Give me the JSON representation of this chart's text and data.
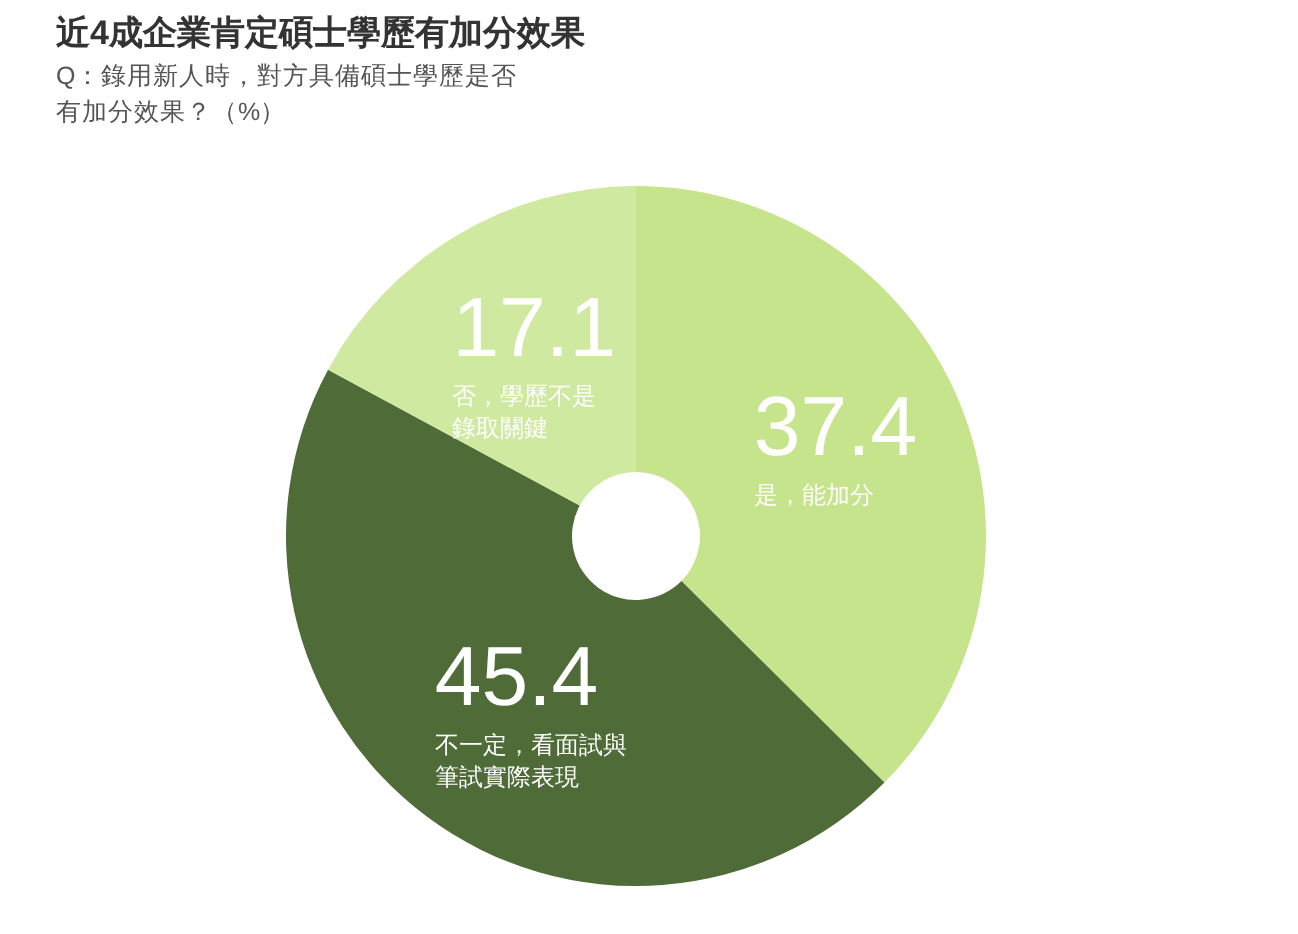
{
  "chart_data": {
    "type": "donut",
    "title": "近4成企業肯定碩士學歷有加分效果",
    "subtitle": "Q：錄用新人時，對方具備碩士學歷是否有加分效果？（%）",
    "categories": [
      "是，能加分",
      "不一定，看面試與筆試實際表現",
      "否，學歷不是錄取關鍵"
    ],
    "values": [
      37.4,
      45.4,
      17.1
    ],
    "colors": [
      "#c6e48b",
      "#4f6b38",
      "#cfe9a0"
    ],
    "data_labels": true,
    "legend": false
  }
}
